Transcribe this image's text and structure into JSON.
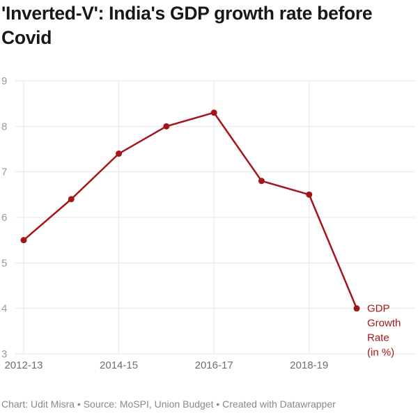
{
  "header": {
    "title": "'Inverted-V': India's GDP growth rate before Covid"
  },
  "footer": {
    "text": "Chart: Udit Misra • Source: MoSPI, Union Budget • Created with Datawrapper"
  },
  "colors": {
    "line": "#a4161a",
    "grid": "#e6e6e6",
    "text_muted": "#888888"
  },
  "chart_data": {
    "type": "line",
    "title": "'Inverted-V': India's GDP growth rate before Covid",
    "xlabel": "",
    "ylabel": "",
    "categories": [
      "2012-13",
      "2013-14",
      "2014-15",
      "2015-16",
      "2016-17",
      "2017-18",
      "2018-19",
      "2019-20"
    ],
    "x_tick_labels": [
      "2012-13",
      "2014-15",
      "2016-17",
      "2018-19"
    ],
    "x_tick_indices": [
      0,
      2,
      4,
      6
    ],
    "ylim": [
      3,
      9
    ],
    "y_ticks": [
      3,
      4,
      5,
      6,
      7,
      8,
      9
    ],
    "grid": true,
    "legend": "inline-end-label",
    "series": [
      {
        "name": "GDP Growth Rate (in %)",
        "label_lines": [
          "GDP",
          "Growth",
          "Rate",
          "(in %)"
        ],
        "values": [
          5.5,
          6.4,
          7.4,
          8.0,
          8.3,
          6.8,
          6.5,
          4.0
        ]
      }
    ]
  }
}
